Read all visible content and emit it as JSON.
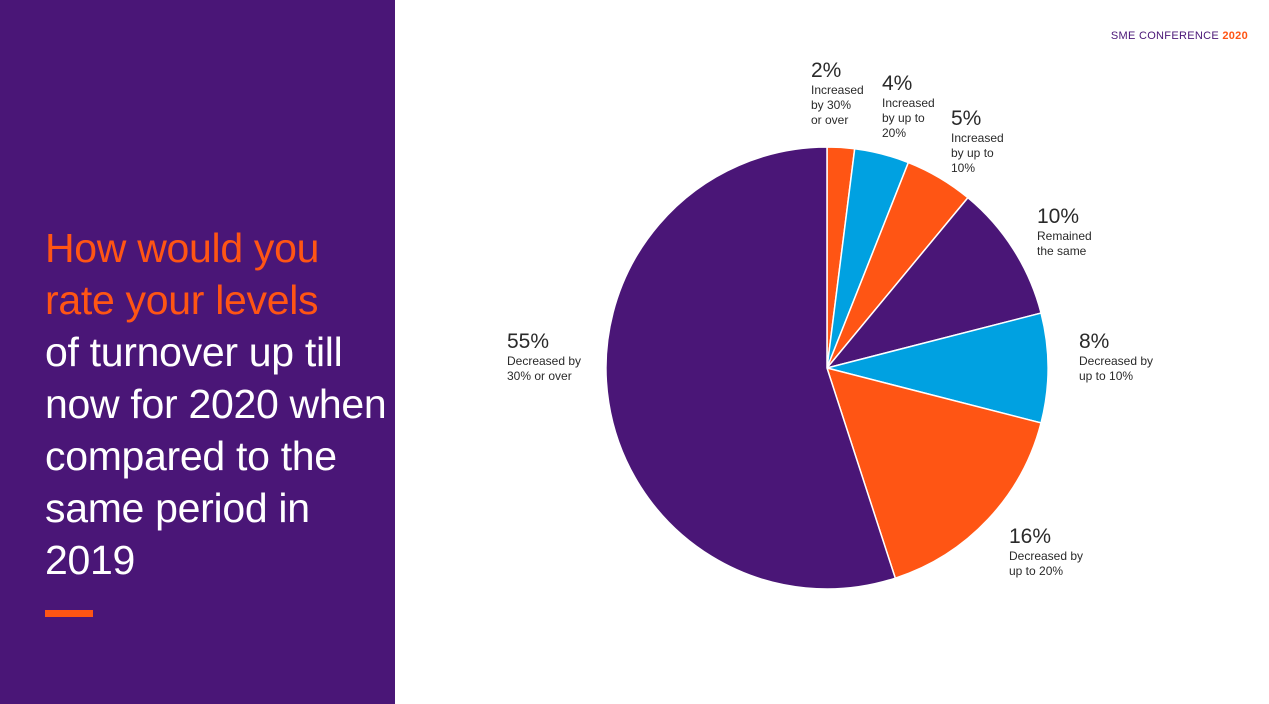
{
  "brand": {
    "name": "SME CONFERENCE",
    "year": "2020"
  },
  "question": {
    "highlight": "How would you rate your levels",
    "rest": "of turnover up till now for 2020 when compared to the same period in 2019"
  },
  "colors": {
    "purple": "#4a1677",
    "orange": "#ff5514",
    "blue": "#00a1e1"
  },
  "chart_data": {
    "type": "pie",
    "title": "How would you rate your levels of turnover up till now for 2020 when compared to the same period in 2019",
    "start": "12 o'clock, clockwise",
    "slices": [
      {
        "label": "Increased\nby 30%\nor over",
        "value": 2,
        "display": "2%",
        "color": "#ff5514"
      },
      {
        "label": "Increased\nby up to\n20%",
        "value": 4,
        "display": "4%",
        "color": "#00a1e1"
      },
      {
        "label": "Increased\nby up to\n10%",
        "value": 5,
        "display": "5%",
        "color": "#ff5514"
      },
      {
        "label": "Remained\nthe same",
        "value": 10,
        "display": "10%",
        "color": "#4a1677"
      },
      {
        "label": "Decreased by\nup to 10%",
        "value": 8,
        "display": "8%",
        "color": "#00a1e1"
      },
      {
        "label": "Decreased by\nup to 20%",
        "value": 16,
        "display": "16%",
        "color": "#ff5514"
      },
      {
        "label": "Decreased by\n30% or over",
        "value": 55,
        "display": "55%",
        "color": "#4a1677"
      }
    ]
  }
}
